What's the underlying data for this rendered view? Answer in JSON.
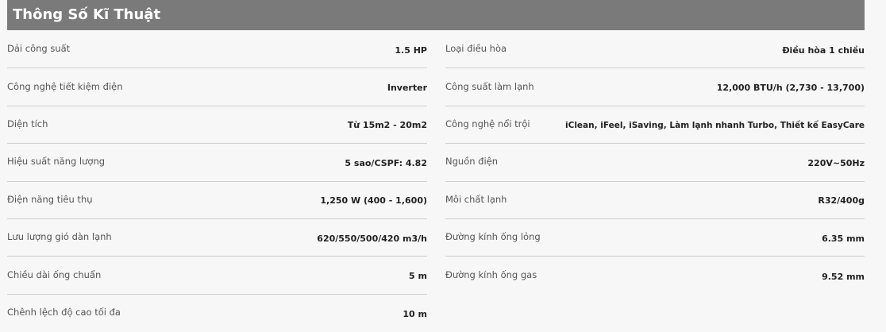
{
  "title": "Thông Số Kĩ Thuật",
  "left": [
    {
      "label": "Dải công suất",
      "value": "1.5 HP"
    },
    {
      "label": "Công nghệ tiết kiệm điện",
      "value": "Inverter"
    },
    {
      "label": "Diện tích",
      "value": "Từ 15m2 - 20m2"
    },
    {
      "label": "Hiệu suất năng lượng",
      "value": "5 sao/CSPF: 4.82"
    },
    {
      "label": "Điện năng tiêu thụ",
      "value": "1,250 W (400 - 1,600)"
    },
    {
      "label": "Lưu lượng gió dàn lạnh",
      "value": "620/550/500/420 m3/h"
    },
    {
      "label": "Chiều dài ống chuẩn",
      "value": "5 m"
    },
    {
      "label": "Chênh lệch độ cao tối đa",
      "value": "10 m"
    }
  ],
  "right": [
    {
      "label": "Loại điều hòa",
      "value": "Điều hòa 1 chiều"
    },
    {
      "label": "Công suất làm lạnh",
      "value": "12,000 BTU/h (2,730 - 13,700)"
    },
    {
      "label": "Công nghệ nổi trội",
      "value": "iClean, iFeel, iSaving, Làm lạnh nhanh Turbo, Thiết kế EasyCare"
    },
    {
      "label": "Nguồn điện",
      "value": "220V~50Hz"
    },
    {
      "label": "Môi chất lạnh",
      "value": "R32/400g"
    },
    {
      "label": "Đường kính ống lỏng",
      "value": "6.35 mm"
    },
    {
      "label": "Đường kính ống gas",
      "value": "9.52 mm"
    }
  ]
}
